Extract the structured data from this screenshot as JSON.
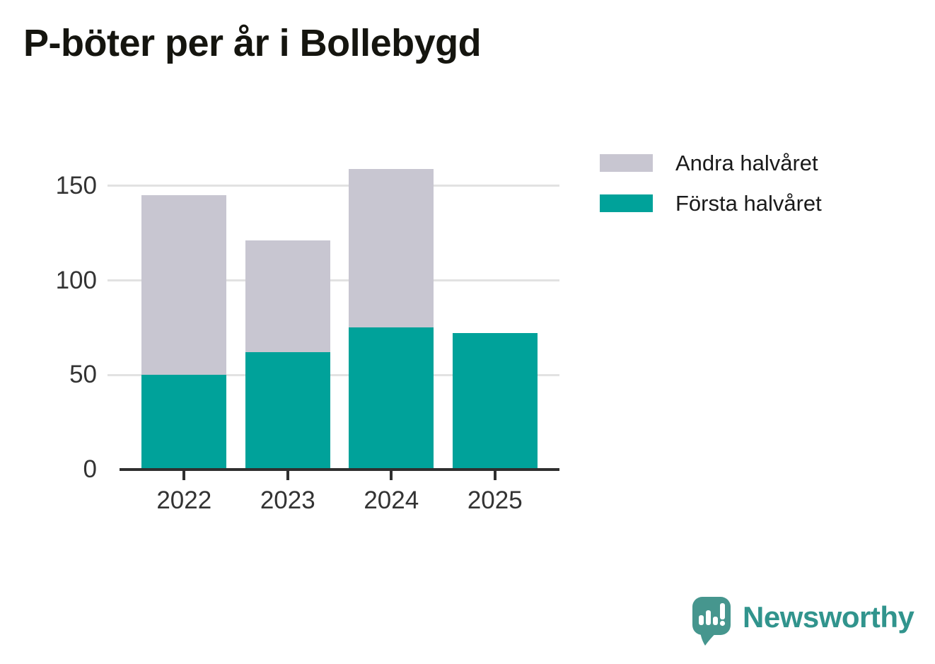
{
  "title": "P-böter per år i Bollebygd",
  "colors": {
    "first_half": "#00a29a",
    "second_half": "#c8c6d1",
    "axis": "#2f2f2f",
    "gridline": "#e2e2e2",
    "tick_label": "#333333",
    "title_text": "#15150f",
    "legend_text": "#1a1a1a",
    "logo": "#46968e",
    "logo_text": "#31948d",
    "background": "#ffffff"
  },
  "legend": {
    "items": [
      {
        "label": "Andra halvåret",
        "color": "#c8c6d1"
      },
      {
        "label": "Första halvåret",
        "color": "#00a29a"
      }
    ]
  },
  "chart_data": {
    "type": "bar",
    "stacked": true,
    "title": "P-böter per år i Bollebygd",
    "categories": [
      "2022",
      "2023",
      "2024",
      "2025"
    ],
    "series": [
      {
        "name": "Första halvåret",
        "color": "#00a29a",
        "values": [
          50,
          62,
          75,
          72
        ]
      },
      {
        "name": "Andra halvåret",
        "color": "#c8c6d1",
        "values": [
          95,
          59,
          84,
          0
        ]
      }
    ],
    "totals": [
      145,
      121,
      159,
      72
    ],
    "xlabel": "",
    "ylabel": "",
    "yticks": [
      0,
      50,
      100,
      150
    ],
    "ylim": [
      0,
      166
    ],
    "grid": "horizontal",
    "legend_position": "right"
  },
  "branding": {
    "logo_text": "Newsworthy",
    "logo_icon": "newsworthy-speech-bubble-bar-chart-icon"
  }
}
